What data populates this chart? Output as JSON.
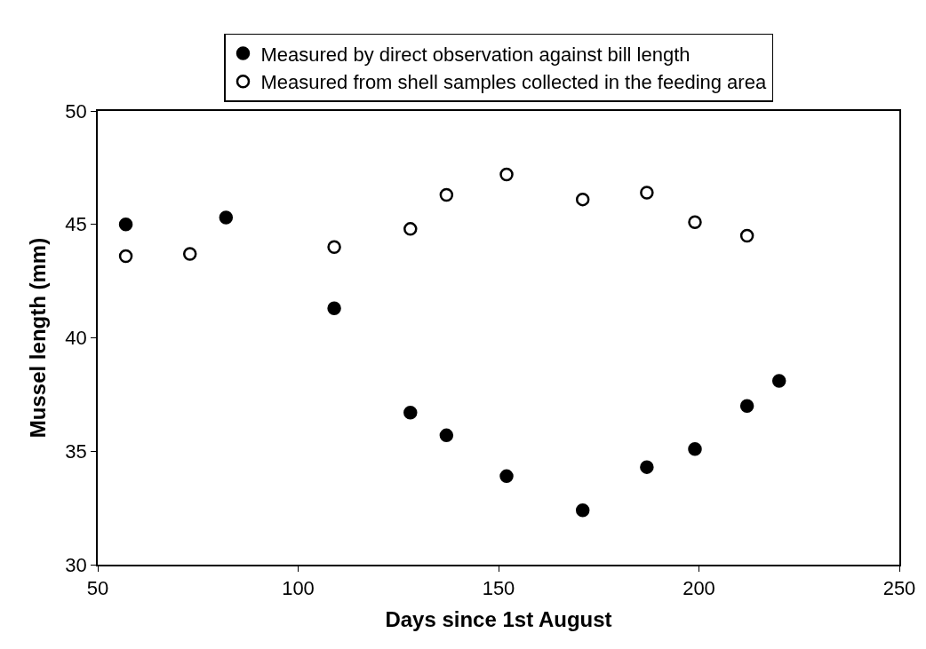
{
  "chart_data": {
    "type": "scatter",
    "xlabel": "Days since 1st August",
    "ylabel": "Mussel length (mm)",
    "series": [
      {
        "name": "Measured by direct observation against bill length",
        "color": "#000000",
        "marker": "circle",
        "x": [
          57,
          82,
          109,
          128,
          137,
          152,
          171,
          187,
          199,
          212,
          220
        ],
        "values": [
          45.0,
          45.3,
          41.3,
          36.7,
          35.7,
          33.9,
          32.4,
          34.3,
          35.1,
          37.0,
          38.1
        ]
      },
      {
        "name": "Measured from shell samples collected in the feeding area",
        "color": "#ffffff",
        "marker": "circle",
        "x": [
          57,
          73,
          109,
          128,
          137,
          152,
          171,
          187,
          199,
          212
        ],
        "values": [
          43.6,
          43.7,
          44.0,
          44.8,
          46.3,
          47.2,
          46.1,
          46.4,
          45.1,
          44.5
        ]
      }
    ],
    "xlim": [
      50,
      250
    ],
    "xticks": [
      50,
      100,
      150,
      200,
      250
    ],
    "ylim": [
      30,
      50
    ],
    "yticks": [
      30,
      35,
      40,
      45,
      50
    ],
    "grid": false,
    "legend": "top"
  }
}
